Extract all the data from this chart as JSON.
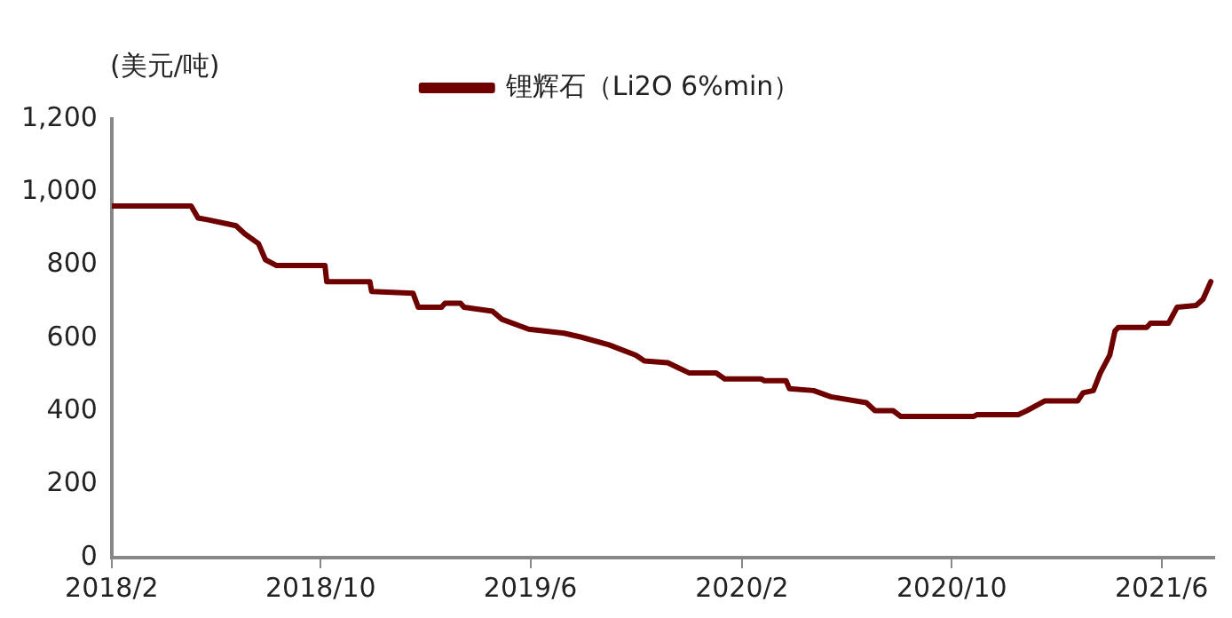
{
  "chart_data": {
    "type": "line",
    "ylabel": "(美元/吨)",
    "legend": "top",
    "xlim": [
      "2018-02-01",
      "2021-08-01"
    ],
    "xticks": [
      {
        "value": "2018-02",
        "label": "2018/2"
      },
      {
        "value": "2018-10",
        "label": "2018/10"
      },
      {
        "value": "2019-06",
        "label": "2019/6"
      },
      {
        "value": "2020-02",
        "label": "2020/2"
      },
      {
        "value": "2020-10",
        "label": "2020/10"
      },
      {
        "value": "2021-06",
        "label": "2021/6"
      }
    ],
    "ylim": [
      0,
      1200
    ],
    "yticks": [
      0,
      200,
      400,
      600,
      800,
      {
        "value": 1000,
        "label": "1,000"
      },
      {
        "value": 1200,
        "label": "1,200"
      }
    ],
    "grid": false,
    "marker": "none",
    "line_style": "solid",
    "x": [
      "2018-02-01",
      "2018-05-04",
      "2018-05-12",
      "2018-05-24",
      "2018-06-25",
      "2018-07-05",
      "2018-07-21",
      "2018-07-29",
      "2018-08-11",
      "2018-10-06",
      "2018-10-08",
      "2018-11-27",
      "2018-11-29",
      "2019-01-16",
      "2019-01-22",
      "2019-02-18",
      "2019-02-22",
      "2019-03-12",
      "2019-03-16",
      "2019-04-18",
      "2019-04-29",
      "2019-05-30",
      "2019-07-10",
      "2019-07-30",
      "2019-08-31",
      "2019-10-01",
      "2019-10-11",
      "2019-11-07",
      "2019-12-02",
      "2020-01-02",
      "2020-01-12",
      "2020-02-23",
      "2020-02-27",
      "2020-03-23",
      "2020-03-27",
      "2020-04-24",
      "2020-05-14",
      "2020-06-24",
      "2020-07-04",
      "2020-07-25",
      "2020-08-03",
      "2020-10-26",
      "2020-10-30",
      "2020-12-17",
      "2020-12-27",
      "2021-01-17",
      "2021-02-24",
      "2021-03-02",
      "2021-03-14",
      "2021-03-22",
      "2021-04-02",
      "2021-04-08",
      "2021-04-12",
      "2021-05-15",
      "2021-05-19",
      "2021-06-09",
      "2021-06-19",
      "2021-07-11",
      "2021-07-19",
      "2021-07-28"
    ],
    "series": [
      {
        "name": "锂辉石（Li2O 6%min）",
        "color": "#6e0000",
        "values": [
          962,
          962,
          929,
          924,
          908,
          886,
          859,
          815,
          799,
          799,
          755,
          755,
          728,
          723,
          685,
          685,
          696,
          696,
          685,
          674,
          652,
          625,
          614,
          603,
          582,
          554,
          538,
          533,
          505,
          505,
          489,
          489,
          484,
          484,
          462,
          457,
          440,
          424,
          402,
          402,
          386,
          386,
          391,
          391,
          402,
          429,
          429,
          451,
          457,
          505,
          554,
          620,
          630,
          630,
          641,
          641,
          685,
          690,
          707,
          755
        ]
      }
    ]
  }
}
